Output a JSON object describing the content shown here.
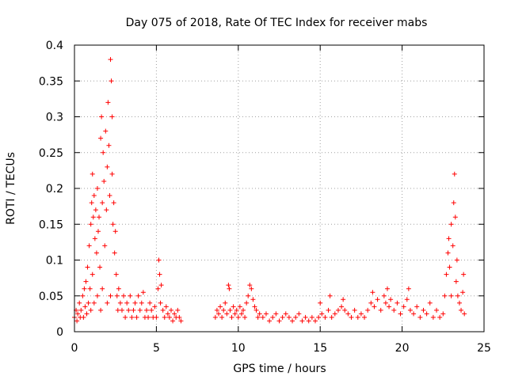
{
  "chart_data": {
    "type": "scatter",
    "title": "Day 075 of 2018, Rate Of TEC Index for receiver mabs",
    "xlabel": "GPS time / hours",
    "ylabel": "ROTI / TECUs",
    "xlim": [
      0,
      25
    ],
    "ylim": [
      0,
      0.4
    ],
    "xticks": [
      0,
      5,
      10,
      15,
      20,
      25
    ],
    "xtick_labels": [
      "0",
      "5",
      "10",
      "15",
      "20",
      "25"
    ],
    "yticks": [
      0,
      0.05,
      0.1,
      0.15,
      0.2,
      0.25,
      0.3,
      0.35,
      0.4
    ],
    "ytick_labels": [
      "0",
      "0.05",
      "0.1",
      "0.15",
      "0.2",
      "0.25",
      "0.3",
      "0.35",
      "0.4"
    ],
    "grid": true,
    "marker": "+",
    "series": [
      {
        "name": "ROTI",
        "color": "#ff0000",
        "points": [
          [
            0.0,
            0.02
          ],
          [
            0.1,
            0.03
          ],
          [
            0.15,
            0.015
          ],
          [
            0.2,
            0.025
          ],
          [
            0.3,
            0.04
          ],
          [
            0.35,
            0.02
          ],
          [
            0.4,
            0.03
          ],
          [
            0.5,
            0.05
          ],
          [
            0.55,
            0.02
          ],
          [
            0.6,
            0.06
          ],
          [
            0.65,
            0.035
          ],
          [
            0.7,
            0.07
          ],
          [
            0.75,
            0.025
          ],
          [
            0.8,
            0.09
          ],
          [
            0.85,
            0.04
          ],
          [
            0.9,
            0.12
          ],
          [
            0.95,
            0.06
          ],
          [
            1.0,
            0.15
          ],
          [
            1.0,
            0.03
          ],
          [
            1.05,
            0.18
          ],
          [
            1.1,
            0.22
          ],
          [
            1.1,
            0.08
          ],
          [
            1.15,
            0.16
          ],
          [
            1.2,
            0.19
          ],
          [
            1.2,
            0.04
          ],
          [
            1.25,
            0.13
          ],
          [
            1.3,
            0.17
          ],
          [
            1.35,
            0.11
          ],
          [
            1.4,
            0.2
          ],
          [
            1.4,
            0.05
          ],
          [
            1.45,
            0.14
          ],
          [
            1.5,
            0.16
          ],
          [
            1.55,
            0.09
          ],
          [
            1.6,
            0.27
          ],
          [
            1.6,
            0.03
          ],
          [
            1.65,
            0.3
          ],
          [
            1.7,
            0.18
          ],
          [
            1.7,
            0.06
          ],
          [
            1.75,
            0.25
          ],
          [
            1.8,
            0.21
          ],
          [
            1.85,
            0.12
          ],
          [
            1.9,
            0.28
          ],
          [
            1.95,
            0.17
          ],
          [
            2.0,
            0.23
          ],
          [
            2.0,
            0.04
          ],
          [
            2.05,
            0.32
          ],
          [
            2.1,
            0.26
          ],
          [
            2.15,
            0.19
          ],
          [
            2.2,
            0.38
          ],
          [
            2.2,
            0.05
          ],
          [
            2.25,
            0.35
          ],
          [
            2.3,
            0.3
          ],
          [
            2.3,
            0.22
          ],
          [
            2.35,
            0.15
          ],
          [
            2.4,
            0.18
          ],
          [
            2.45,
            0.11
          ],
          [
            2.5,
            0.14
          ],
          [
            2.55,
            0.08
          ],
          [
            2.6,
            0.05
          ],
          [
            2.65,
            0.03
          ],
          [
            2.7,
            0.06
          ],
          [
            2.8,
            0.04
          ],
          [
            2.9,
            0.03
          ],
          [
            3.0,
            0.05
          ],
          [
            3.1,
            0.02
          ],
          [
            3.2,
            0.04
          ],
          [
            3.3,
            0.03
          ],
          [
            3.4,
            0.05
          ],
          [
            3.5,
            0.02
          ],
          [
            3.6,
            0.03
          ],
          [
            3.7,
            0.04
          ],
          [
            3.8,
            0.02
          ],
          [
            3.9,
            0.05
          ],
          [
            4.0,
            0.03
          ],
          [
            4.1,
            0.04
          ],
          [
            4.2,
            0.055
          ],
          [
            4.3,
            0.02
          ],
          [
            4.4,
            0.03
          ],
          [
            4.5,
            0.02
          ],
          [
            4.6,
            0.04
          ],
          [
            4.7,
            0.03
          ],
          [
            4.8,
            0.02
          ],
          [
            4.9,
            0.035
          ],
          [
            5.0,
            0.02
          ],
          [
            5.1,
            0.06
          ],
          [
            5.15,
            0.1
          ],
          [
            5.2,
            0.08
          ],
          [
            5.25,
            0.04
          ],
          [
            5.3,
            0.065
          ],
          [
            5.4,
            0.03
          ],
          [
            5.5,
            0.02
          ],
          [
            5.6,
            0.035
          ],
          [
            5.7,
            0.025
          ],
          [
            5.8,
            0.02
          ],
          [
            5.9,
            0.03
          ],
          [
            6.0,
            0.015
          ],
          [
            6.1,
            0.025
          ],
          [
            6.2,
            0.02
          ],
          [
            6.3,
            0.03
          ],
          [
            6.4,
            0.02
          ],
          [
            6.5,
            0.015
          ],
          [
            8.6,
            0.02
          ],
          [
            8.7,
            0.03
          ],
          [
            8.8,
            0.025
          ],
          [
            8.9,
            0.035
          ],
          [
            9.0,
            0.02
          ],
          [
            9.1,
            0.03
          ],
          [
            9.2,
            0.04
          ],
          [
            9.3,
            0.025
          ],
          [
            9.4,
            0.065
          ],
          [
            9.45,
            0.06
          ],
          [
            9.5,
            0.03
          ],
          [
            9.6,
            0.02
          ],
          [
            9.7,
            0.035
          ],
          [
            9.8,
            0.025
          ],
          [
            9.9,
            0.03
          ],
          [
            10.0,
            0.02
          ],
          [
            10.1,
            0.035
          ],
          [
            10.2,
            0.025
          ],
          [
            10.3,
            0.03
          ],
          [
            10.4,
            0.02
          ],
          [
            10.5,
            0.04
          ],
          [
            10.6,
            0.05
          ],
          [
            10.7,
            0.065
          ],
          [
            10.8,
            0.06
          ],
          [
            10.9,
            0.045
          ],
          [
            11.0,
            0.035
          ],
          [
            11.1,
            0.03
          ],
          [
            11.2,
            0.02
          ],
          [
            11.3,
            0.025
          ],
          [
            11.5,
            0.02
          ],
          [
            11.7,
            0.025
          ],
          [
            11.9,
            0.015
          ],
          [
            12.1,
            0.02
          ],
          [
            12.3,
            0.025
          ],
          [
            12.5,
            0.015
          ],
          [
            12.7,
            0.02
          ],
          [
            12.9,
            0.025
          ],
          [
            13.1,
            0.02
          ],
          [
            13.3,
            0.015
          ],
          [
            13.5,
            0.02
          ],
          [
            13.7,
            0.025
          ],
          [
            13.9,
            0.015
          ],
          [
            14.1,
            0.02
          ],
          [
            14.3,
            0.015
          ],
          [
            14.5,
            0.02
          ],
          [
            14.7,
            0.015
          ],
          [
            14.9,
            0.02
          ],
          [
            15.0,
            0.04
          ],
          [
            15.1,
            0.025
          ],
          [
            15.3,
            0.02
          ],
          [
            15.5,
            0.03
          ],
          [
            15.6,
            0.05
          ],
          [
            15.7,
            0.02
          ],
          [
            15.9,
            0.025
          ],
          [
            16.1,
            0.03
          ],
          [
            16.3,
            0.035
          ],
          [
            16.4,
            0.045
          ],
          [
            16.5,
            0.03
          ],
          [
            16.7,
            0.025
          ],
          [
            16.9,
            0.02
          ],
          [
            17.1,
            0.03
          ],
          [
            17.3,
            0.02
          ],
          [
            17.5,
            0.025
          ],
          [
            17.7,
            0.02
          ],
          [
            17.9,
            0.03
          ],
          [
            18.1,
            0.04
          ],
          [
            18.2,
            0.055
          ],
          [
            18.3,
            0.035
          ],
          [
            18.5,
            0.045
          ],
          [
            18.7,
            0.03
          ],
          [
            18.9,
            0.05
          ],
          [
            19.0,
            0.04
          ],
          [
            19.1,
            0.06
          ],
          [
            19.2,
            0.035
          ],
          [
            19.3,
            0.045
          ],
          [
            19.5,
            0.03
          ],
          [
            19.7,
            0.04
          ],
          [
            19.9,
            0.025
          ],
          [
            20.1,
            0.035
          ],
          [
            20.3,
            0.045
          ],
          [
            20.4,
            0.06
          ],
          [
            20.5,
            0.03
          ],
          [
            20.7,
            0.025
          ],
          [
            20.9,
            0.035
          ],
          [
            21.1,
            0.02
          ],
          [
            21.3,
            0.03
          ],
          [
            21.5,
            0.025
          ],
          [
            21.7,
            0.04
          ],
          [
            21.9,
            0.02
          ],
          [
            22.1,
            0.03
          ],
          [
            22.3,
            0.02
          ],
          [
            22.5,
            0.025
          ],
          [
            22.6,
            0.05
          ],
          [
            22.7,
            0.08
          ],
          [
            22.8,
            0.11
          ],
          [
            22.85,
            0.13
          ],
          [
            22.9,
            0.09
          ],
          [
            23.0,
            0.15
          ],
          [
            23.0,
            0.05
          ],
          [
            23.1,
            0.12
          ],
          [
            23.15,
            0.18
          ],
          [
            23.2,
            0.22
          ],
          [
            23.25,
            0.16
          ],
          [
            23.3,
            0.07
          ],
          [
            23.35,
            0.1
          ],
          [
            23.4,
            0.05
          ],
          [
            23.5,
            0.04
          ],
          [
            23.6,
            0.03
          ],
          [
            23.7,
            0.055
          ],
          [
            23.75,
            0.08
          ],
          [
            23.8,
            0.025
          ]
        ]
      }
    ]
  }
}
